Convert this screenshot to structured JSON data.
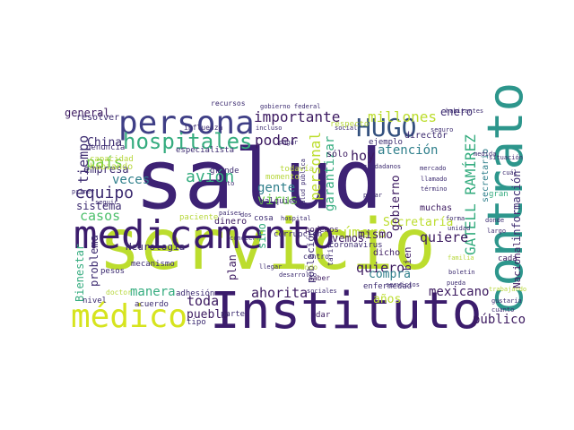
{
  "word_cloud": {
    "words": [
      {
        "text": "salud",
        "color": "#3d2274"
      },
      {
        "text": "servicio",
        "color": "#bcdd2e"
      },
      {
        "text": "Instituto",
        "color": "#3b1c6c"
      },
      {
        "text": "contrato",
        "color": "#2d968c"
      },
      {
        "text": "medicamento",
        "color": "#3b1c6c"
      },
      {
        "text": "persona",
        "color": "#3f3f86"
      },
      {
        "text": "médico",
        "color": "#d6e41e"
      },
      {
        "text": "hospitales",
        "color": "#35ac7f"
      },
      {
        "text": "HUGO",
        "color": "#33507e"
      },
      {
        "text": "importante",
        "color": "#3c1a60"
      },
      {
        "text": "GATELL RAMÍREZ",
        "color": "#35ac7f"
      },
      {
        "text": "personal",
        "color": "#bcdd2e"
      },
      {
        "text": "millones",
        "color": "#bcdd2e"
      },
      {
        "text": "número",
        "color": "#bcdd2e"
      },
      {
        "text": "avión",
        "color": "#35ac7f"
      },
      {
        "text": "equipo",
        "color": "#3c2b70"
      },
      {
        "text": "hoy",
        "color": "#3c1a60"
      },
      {
        "text": "atención",
        "color": "#2f7f8b"
      },
      {
        "text": "poder",
        "color": "#3c1a60"
      },
      {
        "text": "país",
        "color": "#6fcc4b"
      },
      {
        "text": "veces",
        "color": "#2f7f8b"
      },
      {
        "text": "casos",
        "color": "#4dc06c"
      },
      {
        "text": "tiempo",
        "color": "#3c2b70"
      },
      {
        "text": "general",
        "color": "#3c1a60"
      },
      {
        "text": "empresa",
        "color": "#3c2b70"
      },
      {
        "text": "sistema",
        "color": "#3c2b70"
      },
      {
        "text": "virus",
        "color": "#6fcc4b"
      },
      {
        "text": "gente",
        "color": "#2f7f8b"
      },
      {
        "text": "garantizar",
        "color": "#35ac7f"
      },
      {
        "text": "mismo",
        "color": "#3c1a60"
      },
      {
        "text": "quiere",
        "color": "#3c1a60"
      },
      {
        "text": "Secretaría",
        "color": "#bcdd2e"
      },
      {
        "text": "enero",
        "color": "#3c2b70"
      },
      {
        "text": "información",
        "color": "#3c2b70"
      },
      {
        "text": "quiero",
        "color": "#3c1a60"
      },
      {
        "text": "mexicano",
        "color": "#3c1a60"
      },
      {
        "text": "ahorita",
        "color": "#3c1a60"
      },
      {
        "text": "manera",
        "color": "#35ac7f"
      },
      {
        "text": "toda",
        "color": "#3c1a60"
      },
      {
        "text": "pueblo",
        "color": "#3c1a60"
      },
      {
        "text": "público",
        "color": "#3c1a60"
      },
      {
        "text": "años",
        "color": "#bcdd2e"
      },
      {
        "text": "problema",
        "color": "#3c2b70"
      },
      {
        "text": "Bienestar",
        "color": "#35ac7f"
      },
      {
        "text": "Nacional",
        "color": "#3c1a60"
      },
      {
        "text": "gobierno",
        "color": "#3c1a60"
      },
      {
        "text": "compra",
        "color": "#2f7f8b"
      },
      {
        "text": "plan",
        "color": "#3c1a60"
      },
      {
        "text": "Neurología",
        "color": "#3c2b70"
      },
      {
        "text": "China",
        "color": "#3c2b70"
      },
      {
        "text": "resolver",
        "color": "#3c2b70"
      },
      {
        "text": "capacidad",
        "color": "#b7d73b"
      },
      {
        "text": "habiando",
        "color": "#b7d73b"
      },
      {
        "text": "dinero",
        "color": "#3c1a60"
      },
      {
        "text": "sino",
        "color": "#35ac7f"
      },
      {
        "text": "vemos",
        "color": "#3c1a60"
      },
      {
        "text": "población",
        "color": "#3c2b70"
      },
      {
        "text": "bien",
        "color": "#3c1a60"
      },
      {
        "text": "dicho",
        "color": "#3c1a60"
      },
      {
        "text": "muchas",
        "color": "#3c1a60"
      },
      {
        "text": "secretario",
        "color": "#2f7f8b"
      },
      {
        "text": "director",
        "color": "#3c2b70"
      },
      {
        "text": "ejemplo",
        "color": "#3c2b70"
      },
      {
        "text": "respecto",
        "color": "#b7d73b"
      },
      {
        "text": "nivel",
        "color": "#3c2b70"
      },
      {
        "text": "pesos",
        "color": "#3c2b70"
      },
      {
        "text": "acuerdo",
        "color": "#3c2b70"
      },
      {
        "text": "adhesión",
        "color": "#3c2b70"
      },
      {
        "text": "cosa",
        "color": "#3c2b70"
      },
      {
        "text": "parte",
        "color": "#3c2b70"
      },
      {
        "text": "tipo",
        "color": "#3c2b70"
      },
      {
        "text": "dar",
        "color": "#3c1a60"
      },
      {
        "text": "enfermedad",
        "color": "#3c2b70"
      },
      {
        "text": "coronavirus",
        "color": "#3c2b70"
      },
      {
        "text": "corrupción",
        "color": "#3c2b70"
      },
      {
        "text": "podemos",
        "color": "#3c1a60"
      },
      {
        "text": "cualquier",
        "color": "#3c2b70"
      },
      {
        "text": "todavía",
        "color": "#b7d73b"
      },
      {
        "text": "momento",
        "color": "#b7d73b"
      },
      {
        "text": "grande",
        "color": "#3c2b70"
      },
      {
        "text": "mecanismo",
        "color": "#3c2b70"
      },
      {
        "text": "paciente",
        "color": "#b7d73b"
      },
      {
        "text": "especialista",
        "color": "#3c2b70"
      },
      {
        "text": "influenza",
        "color": "#3c2b70"
      },
      {
        "text": "denuncia",
        "color": "#3c2b70"
      },
      {
        "text": "recursos",
        "color": "#3c2b70"
      },
      {
        "text": "incluso",
        "color": "#3c2b70"
      },
      {
        "text": "social",
        "color": "#3c2b70"
      },
      {
        "text": "habitantes",
        "color": "#3c2b70"
      },
      {
        "text": "situación",
        "color": "#3c2b70"
      },
      {
        "text": "cuál",
        "color": "#3c2b70"
      },
      {
        "text": "llegar",
        "color": "#3c2b70"
      },
      {
        "text": "mercado",
        "color": "#3c2b70"
      },
      {
        "text": "trabajando",
        "color": "#b7d73b"
      },
      {
        "text": "familia",
        "color": "#b7d73b"
      },
      {
        "text": "gran",
        "color": "#35ac7f"
      },
      {
        "text": "cada",
        "color": "#3c1a60"
      },
      {
        "text": "sólo",
        "color": "#3c1a60"
      },
      {
        "text": "salud pública",
        "color": "#3c2b70"
      },
      {
        "text": "centro",
        "color": "#3c2b70"
      },
      {
        "text": "mundo",
        "color": "#b7d73b"
      },
      {
        "text": "ciudadanos",
        "color": "#3c2b70"
      },
      {
        "text": "pasar",
        "color": "#3c2b70"
      },
      {
        "text": "saber",
        "color": "#3c1a60"
      },
      {
        "text": "sociales",
        "color": "#3c2b70"
      },
      {
        "text": "desarrollo",
        "color": "#3c2b70"
      },
      {
        "text": "doctor",
        "color": "#b7d73b"
      },
      {
        "text": "gobierno federal",
        "color": "#3c2b70"
      },
      {
        "text": "pagar",
        "color": "#3c2b70"
      },
      {
        "text": "seguro",
        "color": "#3c2b70"
      },
      {
        "text": "medida",
        "color": "#3c2b70"
      },
      {
        "text": "primer",
        "color": "#3c2b70"
      },
      {
        "text": "seguir",
        "color": "#3c2b70"
      },
      {
        "text": "hospital",
        "color": "#3c2b70"
      },
      {
        "text": "llamado",
        "color": "#3c2b70"
      },
      {
        "text": "término",
        "color": "#3c2b70"
      },
      {
        "text": "boletín",
        "color": "#3c2b70"
      },
      {
        "text": "donde",
        "color": "#3c2b70"
      },
      {
        "text": "largo",
        "color": "#3c2b70"
      },
      {
        "text": "gustaría",
        "color": "#3c2b70"
      },
      {
        "text": "cuanto",
        "color": "#3c2b70"
      },
      {
        "text": "pueda",
        "color": "#3c2b70"
      },
      {
        "text": "asunto",
        "color": "#3c2b70"
      },
      {
        "text": "países",
        "color": "#3c2b70"
      },
      {
        "text": "tarifa",
        "color": "#3c2b70"
      },
      {
        "text": "forma",
        "color": "#3c2b70"
      },
      {
        "text": "unidad",
        "color": "#3c2b70"
      },
      {
        "text": "conocer",
        "color": "#3c2b70"
      },
      {
        "text": "servicios",
        "color": "#3c2b70"
      },
      {
        "text": "dos",
        "color": "#3c2b70"
      }
    ]
  }
}
